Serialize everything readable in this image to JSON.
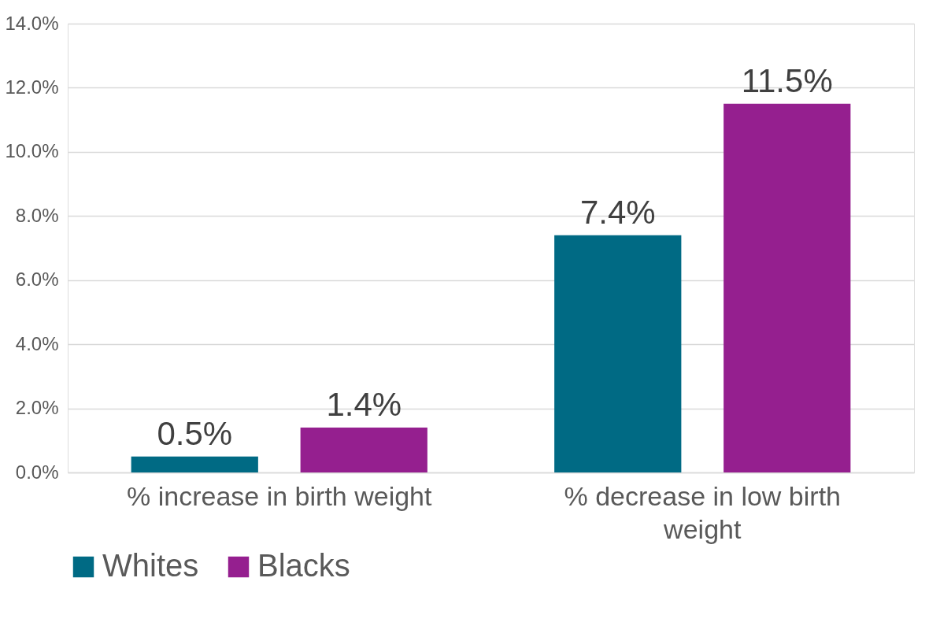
{
  "chart_data": {
    "type": "bar",
    "categories": [
      "% increase in birth weight",
      "% decrease in low birth weight"
    ],
    "series": [
      {
        "name": "Whites",
        "color": "#006a84",
        "values": [
          0.5,
          7.4
        ],
        "value_labels": [
          "0.5%",
          "7.4%"
        ]
      },
      {
        "name": "Blacks",
        "color": "#951f8f",
        "values": [
          1.4,
          11.5
        ],
        "value_labels": [
          "1.4%",
          "11.5%"
        ]
      }
    ],
    "ylim": [
      0,
      14
    ],
    "yticks": [
      {
        "value": 0,
        "label": "0.0%"
      },
      {
        "value": 2,
        "label": "2.0%"
      },
      {
        "value": 4,
        "label": "4.0%"
      },
      {
        "value": 6,
        "label": "6.0%"
      },
      {
        "value": 8,
        "label": "8.0%"
      },
      {
        "value": 10,
        "label": "10.0%"
      },
      {
        "value": 12,
        "label": "12.0%"
      },
      {
        "value": 14,
        "label": "14.0%"
      }
    ],
    "grid": "y",
    "legend": "bottom"
  }
}
